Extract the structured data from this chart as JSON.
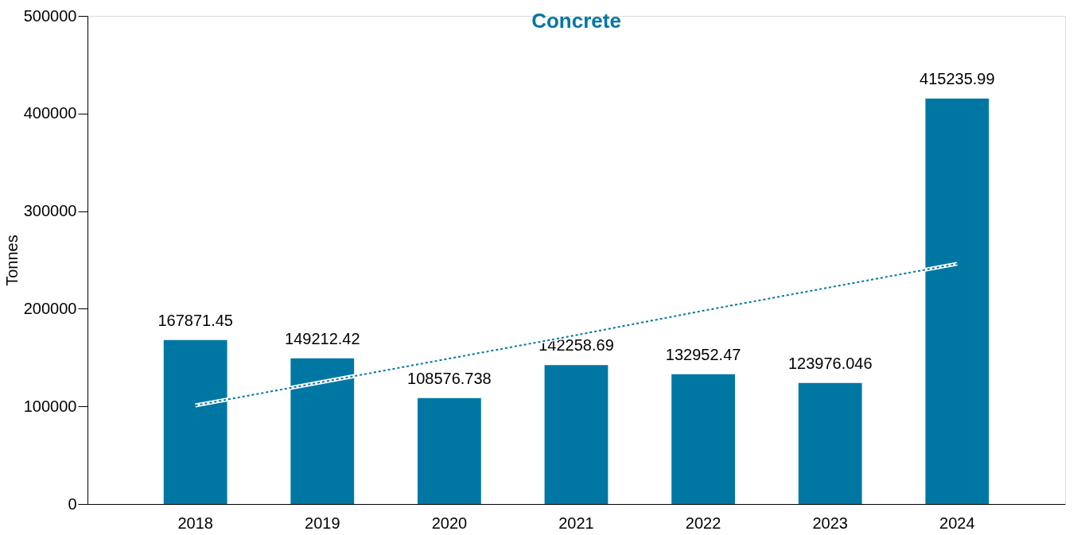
{
  "chart_data": {
    "type": "bar",
    "title": "Concrete",
    "ylabel": "Tonnes",
    "categories": [
      "2018",
      "2019",
      "2020",
      "2021",
      "2022",
      "2023",
      "2024"
    ],
    "series": [
      {
        "color": "#0077a3",
        "values": [
          167871.45,
          149212.42,
          108576.738,
          142258.69,
          132952.47,
          123976.046,
          415235.99
        ],
        "value_labels": [
          "167871.45",
          "149212.42",
          "108576.738",
          "142258.69",
          "132952.47",
          "123976.046",
          "415235.99"
        ]
      },
      {
        "type": "line",
        "color": "#0077a3",
        "line_style": "dotted",
        "values": [
          101000,
          125000,
          149000,
          173000,
          198000,
          222000,
          246000
        ]
      }
    ],
    "ylim": [
      0,
      500000
    ],
    "yticks": [
      0,
      100000,
      200000,
      300000,
      400000,
      500000
    ],
    "grid": false,
    "legend": false
  }
}
